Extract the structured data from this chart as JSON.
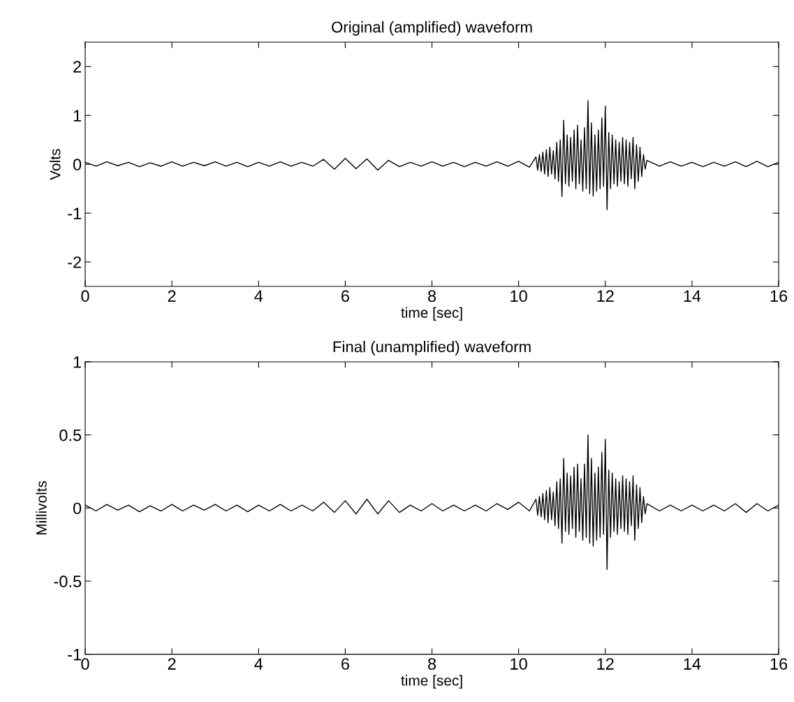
{
  "chart_data": [
    {
      "type": "line",
      "title": "Original (amplified) waveform",
      "xlabel": "time [sec]",
      "ylabel": "Volts",
      "xlim": [
        0,
        16
      ],
      "xticks": [
        0,
        2,
        4,
        6,
        8,
        10,
        12,
        14,
        16
      ],
      "ylim": [
        -2.5,
        2.5
      ],
      "yticks": [
        -2,
        -1,
        0,
        1,
        2
      ],
      "grid": false,
      "marker": "none",
      "line_style": "solid",
      "series": [
        {
          "color": "#000000",
          "x": [
            0,
            0.25,
            0.5,
            0.75,
            1,
            1.25,
            1.5,
            1.75,
            2,
            2.25,
            2.5,
            2.75,
            3,
            3.25,
            3.5,
            3.75,
            4,
            4.25,
            4.5,
            4.75,
            5,
            5.25,
            5.5,
            5.75,
            6,
            6.25,
            6.5,
            6.75,
            7,
            7.25,
            7.5,
            7.75,
            8,
            8.25,
            8.5,
            8.75,
            9,
            9.25,
            9.5,
            9.75,
            10,
            10.25,
            10.4,
            10.44,
            10.48,
            10.52,
            10.56,
            10.6,
            10.64,
            10.68,
            10.72,
            10.76,
            10.8,
            10.84,
            10.88,
            10.92,
            10.96,
            11,
            11.04,
            11.08,
            11.12,
            11.16,
            11.2,
            11.24,
            11.28,
            11.32,
            11.36,
            11.4,
            11.44,
            11.48,
            11.52,
            11.56,
            11.6,
            11.64,
            11.68,
            11.72,
            11.76,
            11.8,
            11.84,
            11.88,
            11.92,
            11.96,
            12,
            12.04,
            12.08,
            12.12,
            12.16,
            12.2,
            12.24,
            12.28,
            12.32,
            12.36,
            12.4,
            12.44,
            12.48,
            12.52,
            12.56,
            12.6,
            12.64,
            12.68,
            12.72,
            12.76,
            12.8,
            12.84,
            12.88,
            12.92,
            12.96,
            13.25,
            13.5,
            13.75,
            14,
            14.25,
            14.5,
            14.75,
            15,
            15.25,
            15.5,
            15.75,
            16
          ],
          "values": [
            0.04,
            -0.04,
            0.05,
            -0.03,
            0.04,
            -0.05,
            0.03,
            -0.04,
            0.05,
            -0.04,
            0.04,
            -0.03,
            0.05,
            -0.04,
            0.04,
            -0.05,
            0.04,
            -0.04,
            0.05,
            -0.04,
            0.04,
            -0.04,
            0.1,
            -0.1,
            0.12,
            -0.09,
            0.11,
            -0.12,
            0.08,
            -0.05,
            0.04,
            -0.04,
            0.05,
            -0.04,
            0.04,
            -0.05,
            0.04,
            -0.04,
            0.05,
            -0.04,
            0.06,
            -0.06,
            0.15,
            -0.12,
            0.2,
            -0.15,
            0.25,
            -0.2,
            0.3,
            -0.25,
            0.35,
            -0.2,
            0.28,
            -0.3,
            0.45,
            -0.35,
            0.5,
            -0.66,
            0.9,
            -0.4,
            0.6,
            -0.45,
            0.55,
            -0.35,
            0.7,
            -0.5,
            0.8,
            -0.4,
            0.5,
            -0.55,
            0.75,
            -0.5,
            1.3,
            -0.6,
            0.85,
            -0.65,
            0.6,
            -0.55,
            0.7,
            -0.5,
            0.95,
            -0.45,
            1.19,
            -0.93,
            0.65,
            -0.5,
            0.6,
            -0.4,
            0.5,
            -0.45,
            0.45,
            -0.35,
            0.55,
            -0.4,
            0.5,
            -0.45,
            0.45,
            -0.3,
            0.55,
            -0.5,
            0.4,
            -0.35,
            0.35,
            -0.25,
            0.2,
            -0.1,
            0.08,
            -0.04,
            0.05,
            -0.04,
            0.04,
            -0.05,
            0.04,
            -0.04,
            0.05,
            -0.05,
            0.06,
            -0.05,
            0.04
          ]
        }
      ]
    },
    {
      "type": "line",
      "title": "Final (unamplified) waveform",
      "xlabel": "time [sec]",
      "ylabel": "Millivolts",
      "xlim": [
        0,
        16
      ],
      "xticks": [
        0,
        2,
        4,
        6,
        8,
        10,
        12,
        14,
        16
      ],
      "ylim": [
        -1,
        1
      ],
      "yticks": [
        -1,
        -0.5,
        0,
        0.5,
        1
      ],
      "grid": false,
      "marker": "none",
      "line_style": "solid",
      "series": [
        {
          "color": "#000000",
          "x": [
            0,
            0.25,
            0.5,
            0.75,
            1,
            1.25,
            1.5,
            1.75,
            2,
            2.25,
            2.5,
            2.75,
            3,
            3.25,
            3.5,
            3.75,
            4,
            4.25,
            4.5,
            4.75,
            5,
            5.25,
            5.5,
            5.75,
            6,
            6.25,
            6.5,
            6.75,
            7,
            7.25,
            7.5,
            7.75,
            8,
            8.25,
            8.5,
            8.75,
            9,
            9.25,
            9.5,
            9.75,
            10,
            10.25,
            10.4,
            10.44,
            10.48,
            10.52,
            10.56,
            10.6,
            10.64,
            10.68,
            10.72,
            10.76,
            10.8,
            10.84,
            10.88,
            10.92,
            10.96,
            11,
            11.04,
            11.08,
            11.12,
            11.16,
            11.2,
            11.24,
            11.28,
            11.32,
            11.36,
            11.4,
            11.44,
            11.48,
            11.52,
            11.56,
            11.6,
            11.64,
            11.68,
            11.72,
            11.76,
            11.8,
            11.84,
            11.88,
            11.92,
            11.96,
            12,
            12.04,
            12.08,
            12.12,
            12.16,
            12.2,
            12.24,
            12.28,
            12.32,
            12.36,
            12.4,
            12.44,
            12.48,
            12.52,
            12.56,
            12.6,
            12.64,
            12.68,
            12.72,
            12.76,
            12.8,
            12.84,
            12.88,
            12.92,
            12.96,
            13.25,
            13.5,
            13.75,
            14,
            14.25,
            14.5,
            14.75,
            15,
            15.25,
            15.5,
            15.75,
            16
          ],
          "values": [
            0.02,
            -0.02,
            0.025,
            -0.015,
            0.02,
            -0.025,
            0.015,
            -0.02,
            0.025,
            -0.02,
            0.02,
            -0.015,
            0.025,
            -0.02,
            0.02,
            -0.025,
            0.02,
            -0.02,
            0.025,
            -0.02,
            0.02,
            -0.02,
            0.04,
            -0.03,
            0.05,
            -0.04,
            0.06,
            -0.04,
            0.05,
            -0.03,
            0.02,
            -0.02,
            0.03,
            -0.02,
            0.02,
            -0.02,
            0.02,
            -0.02,
            0.03,
            -0.01,
            0.04,
            -0.02,
            0.06,
            -0.05,
            0.08,
            -0.06,
            0.1,
            -0.08,
            0.12,
            -0.1,
            0.14,
            -0.08,
            0.11,
            -0.12,
            0.18,
            -0.14,
            0.2,
            -0.24,
            0.34,
            -0.16,
            0.24,
            -0.18,
            0.22,
            -0.14,
            0.28,
            -0.2,
            0.3,
            -0.16,
            0.2,
            -0.22,
            0.3,
            -0.2,
            0.5,
            -0.24,
            0.34,
            -0.26,
            0.24,
            -0.22,
            0.28,
            -0.2,
            0.38,
            -0.18,
            0.47,
            -0.42,
            0.26,
            -0.2,
            0.24,
            -0.16,
            0.2,
            -0.18,
            0.18,
            -0.14,
            0.22,
            -0.16,
            0.2,
            -0.18,
            0.18,
            -0.12,
            0.22,
            -0.22,
            0.16,
            -0.14,
            0.14,
            -0.1,
            0.08,
            -0.04,
            0.03,
            -0.02,
            0.02,
            -0.02,
            0.02,
            -0.02,
            0.02,
            -0.02,
            0.03,
            -0.03,
            0.03,
            -0.02,
            0.02
          ]
        }
      ]
    }
  ]
}
